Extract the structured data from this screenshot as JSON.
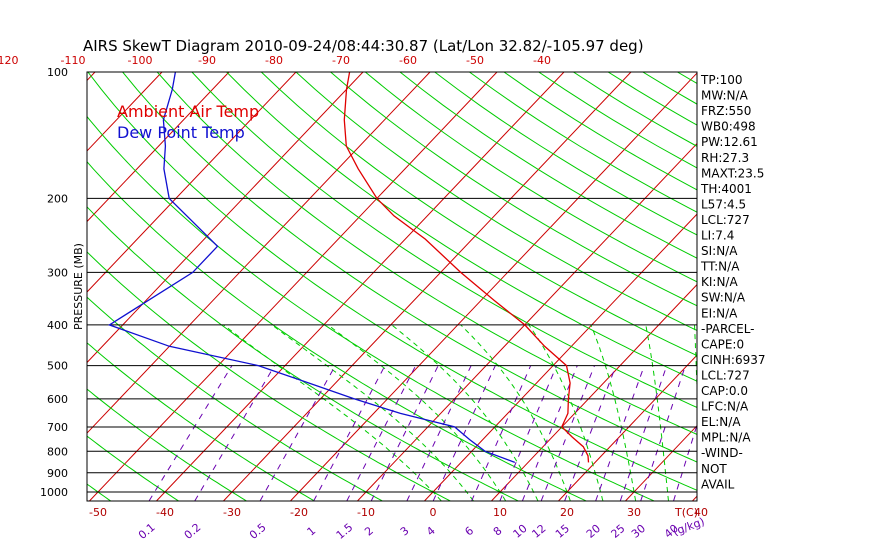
{
  "title": "AIRS SkewT Diagram 2010-09-24/08:44:30.87 (Lat/Lon 32.82/-105.97 deg)",
  "legend": {
    "ambient": "Ambient Air Temp",
    "dewpoint": "Dew Point Temp",
    "ambient_color": "#e00000",
    "dewpoint_color": "#1010d0"
  },
  "colors": {
    "isotherm": "#cc0000",
    "dry_adiabat": "#00cc00",
    "moist_adiabat": "#00cc00",
    "mixing_ratio": "#6a00b0",
    "isobar": "#000000",
    "bottom_labels": "#b00000"
  },
  "chart_data": {
    "type": "line",
    "title": "AIRS SkewT Diagram 2010-09-24/08:44:30.87 (Lat/Lon 32.82/-105.97 deg)",
    "ylabel": "PRESSURE (MB)",
    "xlabel": "T(C)",
    "mixing_ratio_unit": "(g/kg)",
    "y_scale": "log",
    "ylim": [
      1050,
      100
    ],
    "pressure_ticks": [
      100,
      200,
      300,
      400,
      500,
      600,
      700,
      800,
      900,
      1000
    ],
    "temp_ticks_bottom": [
      -50,
      -40,
      -30,
      -20,
      -10,
      0,
      10,
      20,
      30,
      40
    ],
    "temp_ticks_top": [
      -120,
      -110,
      -100,
      -90,
      -80,
      -70,
      -60,
      -50,
      -40
    ],
    "mixing_ratio_labels": [
      "0.1",
      "0.2",
      "0.5",
      "1",
      "1.5",
      "2",
      "3",
      "4",
      "6",
      "8",
      "10",
      "12",
      "15",
      "20",
      "25",
      "30",
      "40"
    ],
    "series": [
      {
        "name": "Ambient Air Temp",
        "pressure": [
          850,
          820,
          780,
          740,
          700,
          650,
          600,
          550,
          500,
          450,
          400,
          350,
          300,
          250,
          220,
          200,
          170,
          150,
          130,
          110,
          100
        ],
        "temperature": [
          19,
          18,
          16,
          13,
          10,
          9,
          7,
          5,
          2,
          -4,
          -10,
          -18,
          -27,
          -37,
          -45,
          -50,
          -57,
          -62,
          -66,
          -70,
          -72
        ]
      },
      {
        "name": "Dew Point Temp",
        "pressure": [
          850,
          800,
          750,
          700,
          650,
          600,
          550,
          500,
          450,
          400,
          300,
          260,
          200,
          170,
          150,
          130,
          110,
          100
        ],
        "temperature": [
          8,
          2,
          -2,
          -6,
          -16,
          -25,
          -34,
          -44,
          -60,
          -72,
          -67,
          -67,
          -81,
          -86,
          -89,
          -93,
          -96,
          -98
        ]
      }
    ]
  },
  "indices": [
    "TP:100",
    "MW:N/A",
    "FRZ:550",
    "WB0:498",
    "PW:12.61",
    "RH:27.3",
    "MAXT:23.5",
    "TH:4001",
    "L57:4.5",
    "LCL:727",
    "LI:7.4",
    "SI:N/A",
    "TT:N/A",
    "KI:N/A",
    "SW:N/A",
    "EI:N/A",
    "-PARCEL-",
    "CAPE:0",
    "CINH:6937",
    "LCL:727",
    "CAP:0.0",
    "LFC:N/A",
    "EL:N/A",
    "MPL:N/A",
    "-WIND-",
    "NOT",
    "AVAIL"
  ]
}
